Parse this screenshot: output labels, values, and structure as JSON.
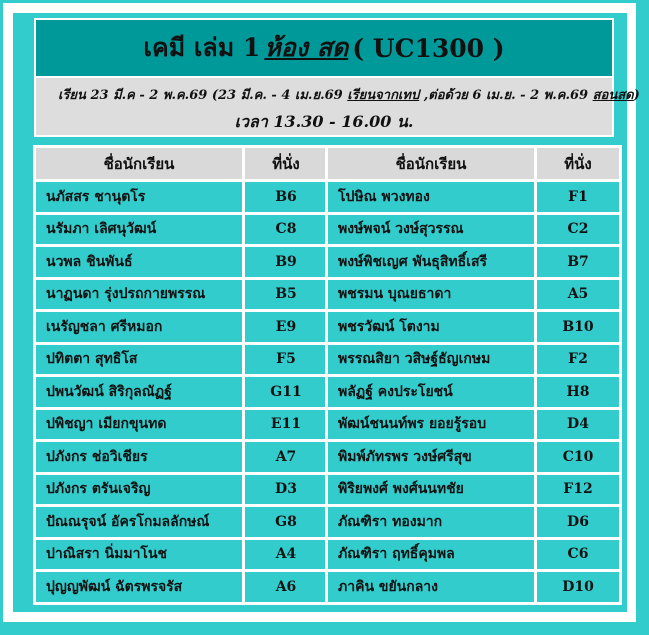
{
  "title": {
    "prefix": "เคมี เล่ม 1",
    "room": "ห้อง สด",
    "code": "( UC1300 )"
  },
  "schedule": {
    "line1_a": "เรียน 23 มี.ค - 2 พ.ค.69  (23 มี.ค. - 4 เม.ย.69 ",
    "line1_b": "เรียนจากเทป",
    "line1_c": " ,ต่อด้วย 6 เม.ย. - 2 พ.ค.69 ",
    "line1_d": "สอนสด",
    "line1_e": ")",
    "time": "เวลา 13.30 - 16.00 น."
  },
  "headers": {
    "name": "ชื่อนักเรียน",
    "seat": "ที่นั่ง"
  },
  "left_table": [
    {
      "name": "นภัสสร ชานุตโร",
      "seat": "B6"
    },
    {
      "name": "นรัมภา เลิศนุวัฒน์",
      "seat": "C8"
    },
    {
      "name": "นวพล ชินพันธ์",
      "seat": "B9"
    },
    {
      "name": "นาฏนดา รุ่งปรถกายพรรณ",
      "seat": "B5"
    },
    {
      "name": "เนรัญชลา ศรีหมอก",
      "seat": "E9"
    },
    {
      "name": "ปทิตตา สุทธิโส",
      "seat": "F5"
    },
    {
      "name": "ปพนวัฒน์ สิริกุลณัฏฐ์",
      "seat": "G11"
    },
    {
      "name": "ปพิชญา เมียกขุนทด",
      "seat": "E11"
    },
    {
      "name": "ปภังกร ช่อวิเชียร",
      "seat": "A7"
    },
    {
      "name": "ปภังกร ตรันเจริญ",
      "seat": "D3"
    },
    {
      "name": "ปัณณรุจน์ อัครโกมลลักษณ์",
      "seat": "G8"
    },
    {
      "name": "ปาณิสรา นิ่มมาโนช",
      "seat": "A4"
    },
    {
      "name": "ปุญญพัฒน์ ฉัตรพรจรัส",
      "seat": "A6"
    }
  ],
  "right_table": [
    {
      "name": "โปษิณ พวงทอง",
      "seat": "F1"
    },
    {
      "name": "พงษ์พจน์ วงษ์สุวรรณ",
      "seat": "C2"
    },
    {
      "name": "พงษ์พิชเญศ พันธุสิทธิ์เสรี",
      "seat": "B7"
    },
    {
      "name": "พชรมน บุณยธาดา",
      "seat": "A5"
    },
    {
      "name": "พชรวัฒน์ โตงาม",
      "seat": "B10"
    },
    {
      "name": "พรรณสิยา วสิษฐ์ธัญเกษม",
      "seat": "F2"
    },
    {
      "name": "พลัฏฐ์ คงประโยชน์",
      "seat": "H8"
    },
    {
      "name": "พัฒน์ชนนท์พร ยอยรู้รอบ",
      "seat": "D4"
    },
    {
      "name": "พิมพ์ภัทรพร วงษ์ศรีสุข",
      "seat": "C10"
    },
    {
      "name": "พิริยพงศ์ พงศ์นนทชัย",
      "seat": "F12"
    },
    {
      "name": "ภัณฑิรา ทองมาก",
      "seat": "D6"
    },
    {
      "name": "ภัณฑิรา ฤทธิ์คุมพล",
      "seat": "C6"
    },
    {
      "name": "ภาคิน ขยันกลาง",
      "seat": "D10"
    }
  ]
}
